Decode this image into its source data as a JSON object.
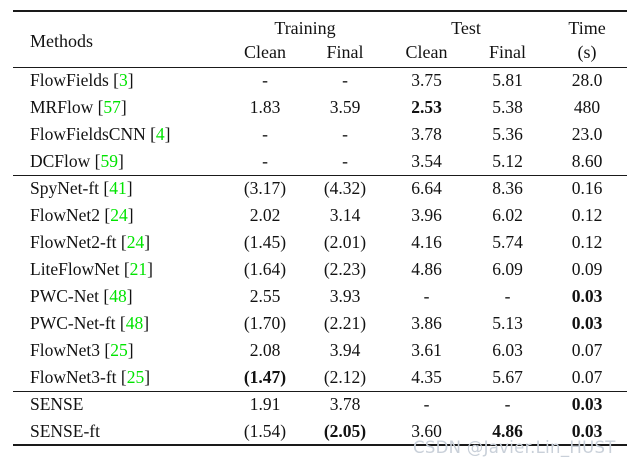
{
  "colors": {
    "citation_green": "#00e400",
    "watermark_gray": "#c9d0d9"
  },
  "watermark": {
    "text": "CSDN @Javier.Lin_HUST"
  },
  "table": {
    "header": {
      "methods": "Methods",
      "training": "Training",
      "test": "Test",
      "time": "Time",
      "time_unit": "(s)",
      "clean": "Clean",
      "final": "Final"
    },
    "groups": [
      {
        "rows": [
          {
            "method": "FlowFields",
            "cite": "3",
            "values": [
              "-",
              "-",
              "3.75",
              "5.81",
              "28.0"
            ],
            "bold": [
              false,
              false,
              false,
              false,
              false
            ]
          },
          {
            "method": "MRFlow",
            "cite": "57",
            "values": [
              "1.83",
              "3.59",
              "2.53",
              "5.38",
              "480"
            ],
            "bold": [
              false,
              false,
              true,
              false,
              false
            ]
          },
          {
            "method": "FlowFieldsCNN",
            "cite": "4",
            "values": [
              "-",
              "-",
              "3.78",
              "5.36",
              "23.0"
            ],
            "bold": [
              false,
              false,
              false,
              false,
              false
            ]
          },
          {
            "method": "DCFlow",
            "cite": "59",
            "values": [
              "-",
              "-",
              "3.54",
              "5.12",
              "8.60"
            ],
            "bold": [
              false,
              false,
              false,
              false,
              false
            ]
          }
        ]
      },
      {
        "rows": [
          {
            "method": "SpyNet-ft",
            "cite": "41",
            "values": [
              "(3.17)",
              "(4.32)",
              "6.64",
              "8.36",
              "0.16"
            ],
            "bold": [
              false,
              false,
              false,
              false,
              false
            ]
          },
          {
            "method": "FlowNet2",
            "cite": "24",
            "values": [
              "2.02",
              "3.14",
              "3.96",
              "6.02",
              "0.12"
            ],
            "bold": [
              false,
              false,
              false,
              false,
              false
            ]
          },
          {
            "method": "FlowNet2-ft",
            "cite": "24",
            "values": [
              "(1.45)",
              "(2.01)",
              "4.16",
              "5.74",
              "0.12"
            ],
            "bold": [
              false,
              false,
              false,
              false,
              false
            ]
          },
          {
            "method": "LiteFlowNet",
            "cite": "21",
            "values": [
              "(1.64)",
              "(2.23)",
              "4.86",
              "6.09",
              "0.09"
            ],
            "bold": [
              false,
              false,
              false,
              false,
              false
            ]
          },
          {
            "method": "PWC-Net",
            "cite": "48",
            "values": [
              "2.55",
              "3.93",
              "-",
              "-",
              "0.03"
            ],
            "bold": [
              false,
              false,
              false,
              false,
              true
            ]
          },
          {
            "method": "PWC-Net-ft",
            "cite": "48",
            "values": [
              "(1.70)",
              "(2.21)",
              "3.86",
              "5.13",
              "0.03"
            ],
            "bold": [
              false,
              false,
              false,
              false,
              true
            ]
          },
          {
            "method": "FlowNet3",
            "cite": "25",
            "values": [
              "2.08",
              "3.94",
              "3.61",
              "6.03",
              "0.07"
            ],
            "bold": [
              false,
              false,
              false,
              false,
              false
            ]
          },
          {
            "method": "FlowNet3-ft",
            "cite": "25",
            "values": [
              "(1.47)",
              "(2.12)",
              "4.35",
              "5.67",
              "0.07"
            ],
            "bold": [
              true,
              false,
              false,
              false,
              false
            ]
          }
        ]
      },
      {
        "rows": [
          {
            "method": "SENSE",
            "cite": null,
            "values": [
              "1.91",
              "3.78",
              "-",
              "-",
              "0.03"
            ],
            "bold": [
              false,
              false,
              false,
              false,
              true
            ]
          },
          {
            "method": "SENSE-ft",
            "cite": null,
            "values": [
              "(1.54)",
              "(2.05)",
              "3.60",
              "4.86",
              "0.03"
            ],
            "bold": [
              false,
              true,
              false,
              true,
              true
            ]
          }
        ]
      }
    ]
  }
}
